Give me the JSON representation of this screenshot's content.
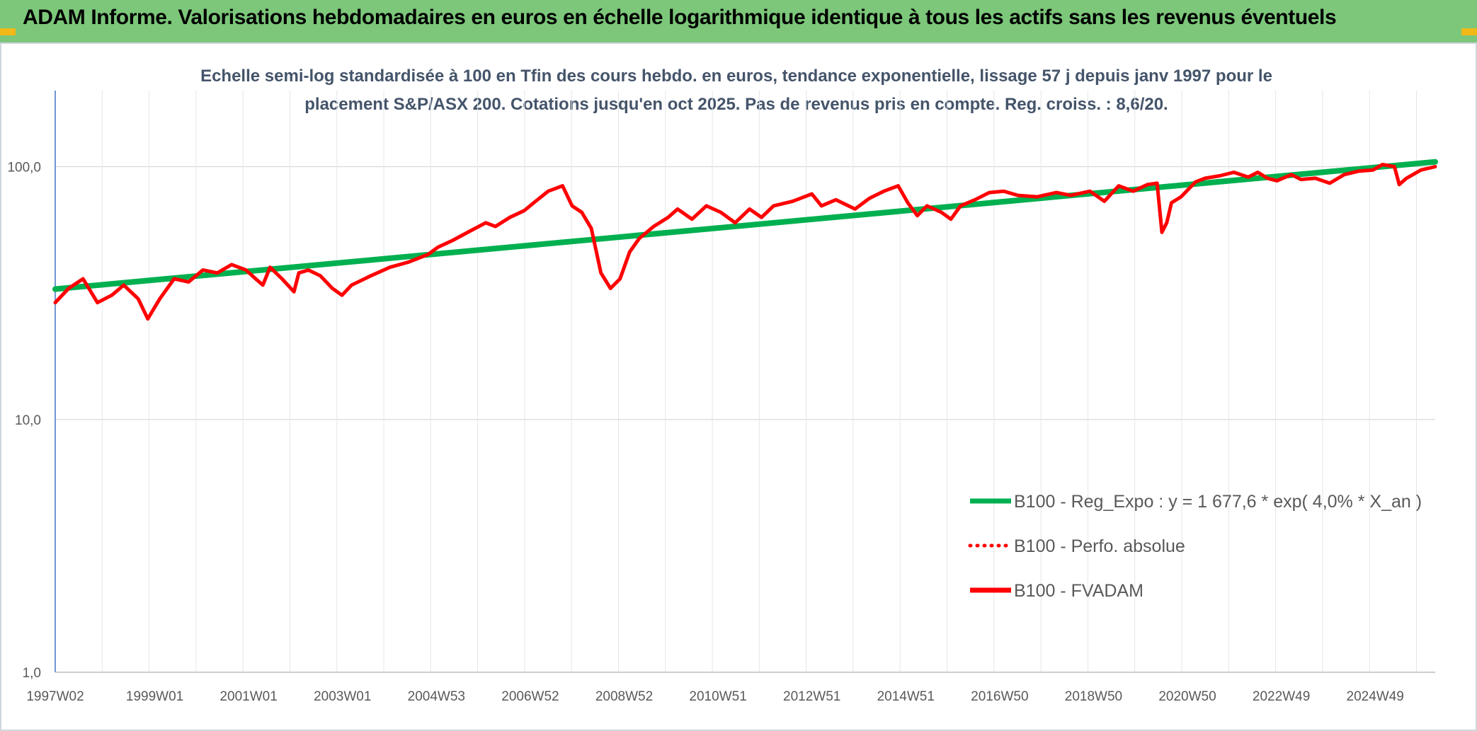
{
  "header": {
    "title": "ADAM Informe. Valorisations hebdomadaires en euros en échelle logarithmique identique à tous les actifs sans les revenus éventuels",
    "background": "#7cc77a"
  },
  "chart_data": {
    "type": "line",
    "title": "Echelle semi-log standardisée à 100 en Tfin des cours hebdo. en euros, tendance exponentielle, lissage 57 j depuis janv 1997 pour le placement S&P/ASX 200. Cotations jusqu'en oct 2025. Pas de revenus pris en compte. Reg. croiss. : 8,6/20.",
    "xlabel": "",
    "ylabel": "",
    "y_scale": "log",
    "ylim": [
      1,
      200
    ],
    "xlim": [
      1997.02,
      2025.8
    ],
    "y_ticks": [
      "1,0",
      "10,0",
      "100,0"
    ],
    "x_ticks": [
      "1997W02",
      "1999W01",
      "2001W01",
      "2003W01",
      "2004W53",
      "2006W52",
      "2008W52",
      "2010W51",
      "2012W51",
      "2014W51",
      "2016W50",
      "2018W50",
      "2020W50",
      "2022W49",
      "2024W49"
    ],
    "grid": true,
    "legend_position": "right",
    "series": [
      {
        "name": "B100 - Reg_Expo : y = 1 677,6 * exp( 4,0% *  X_an )",
        "color": "#00b050",
        "style": "solid",
        "x": [
          1997.02,
          2025.8
        ],
        "values": [
          32.8,
          104.5
        ]
      },
      {
        "name": "B100 - Perfo. absolue",
        "color": "#ff0000",
        "style": "dotted",
        "x": [],
        "values": []
      },
      {
        "name": "B100 - FVADAM",
        "color": "#ff0000",
        "style": "solid",
        "x": [
          1997.02,
          1997.3,
          1997.6,
          1997.9,
          1998.2,
          1998.45,
          1998.75,
          1998.95,
          1999.2,
          1999.5,
          1999.8,
          2000.1,
          2000.4,
          2000.7,
          2001.0,
          2001.2,
          2001.35,
          2001.5,
          2001.75,
          2002.0,
          2002.1,
          2002.3,
          2002.55,
          2002.8,
          2003.0,
          2003.2,
          2003.6,
          2004.0,
          2004.4,
          2004.8,
          2005.0,
          2005.3,
          2005.7,
          2006.0,
          2006.2,
          2006.5,
          2006.8,
          2007.0,
          2007.3,
          2007.6,
          2007.8,
          2008.0,
          2008.2,
          2008.4,
          2008.6,
          2008.8,
          2009.0,
          2009.2,
          2009.5,
          2009.8,
          2010.0,
          2010.3,
          2010.6,
          2010.9,
          2011.2,
          2011.5,
          2011.75,
          2012.0,
          2012.4,
          2012.8,
          2013.0,
          2013.3,
          2013.7,
          2014.0,
          2014.3,
          2014.6,
          2014.8,
          2015.0,
          2015.2,
          2015.5,
          2015.7,
          2015.9,
          2016.2,
          2016.5,
          2016.8,
          2017.1,
          2017.5,
          2017.9,
          2018.2,
          2018.6,
          2018.9,
          2019.2,
          2019.5,
          2019.8,
          2020.0,
          2020.1,
          2020.2,
          2020.3,
          2020.5,
          2020.8,
          2021.0,
          2021.3,
          2021.6,
          2021.9,
          2022.1,
          2022.3,
          2022.5,
          2022.8,
          2023.0,
          2023.3,
          2023.6,
          2023.9,
          2024.2,
          2024.5,
          2024.7,
          2024.95,
          2025.05,
          2025.2,
          2025.5,
          2025.8
        ],
        "values": [
          29,
          33,
          36,
          29,
          31,
          34,
          30,
          25,
          30,
          36,
          35,
          39,
          38,
          41,
          39,
          36,
          34,
          40,
          36,
          32,
          38,
          39,
          37,
          33,
          31,
          34,
          37,
          40,
          42,
          45,
          48,
          51,
          56,
          60,
          58,
          63,
          67,
          72,
          80,
          84,
          70,
          66,
          57,
          38,
          33,
          36,
          46,
          52,
          58,
          63,
          68,
          62,
          70,
          66,
          60,
          68,
          63,
          70,
          73,
          78,
          70,
          74,
          68,
          75,
          80,
          84,
          72,
          64,
          70,
          66,
          62,
          70,
          74,
          79,
          80,
          77,
          76,
          79,
          77,
          80,
          73,
          84,
          80,
          85,
          86,
          55,
          60,
          72,
          76,
          87,
          90,
          92,
          95,
          91,
          95,
          90,
          88,
          93,
          89,
          90,
          86,
          93,
          96,
          97,
          102,
          100,
          85,
          90,
          97,
          100
        ]
      }
    ]
  }
}
